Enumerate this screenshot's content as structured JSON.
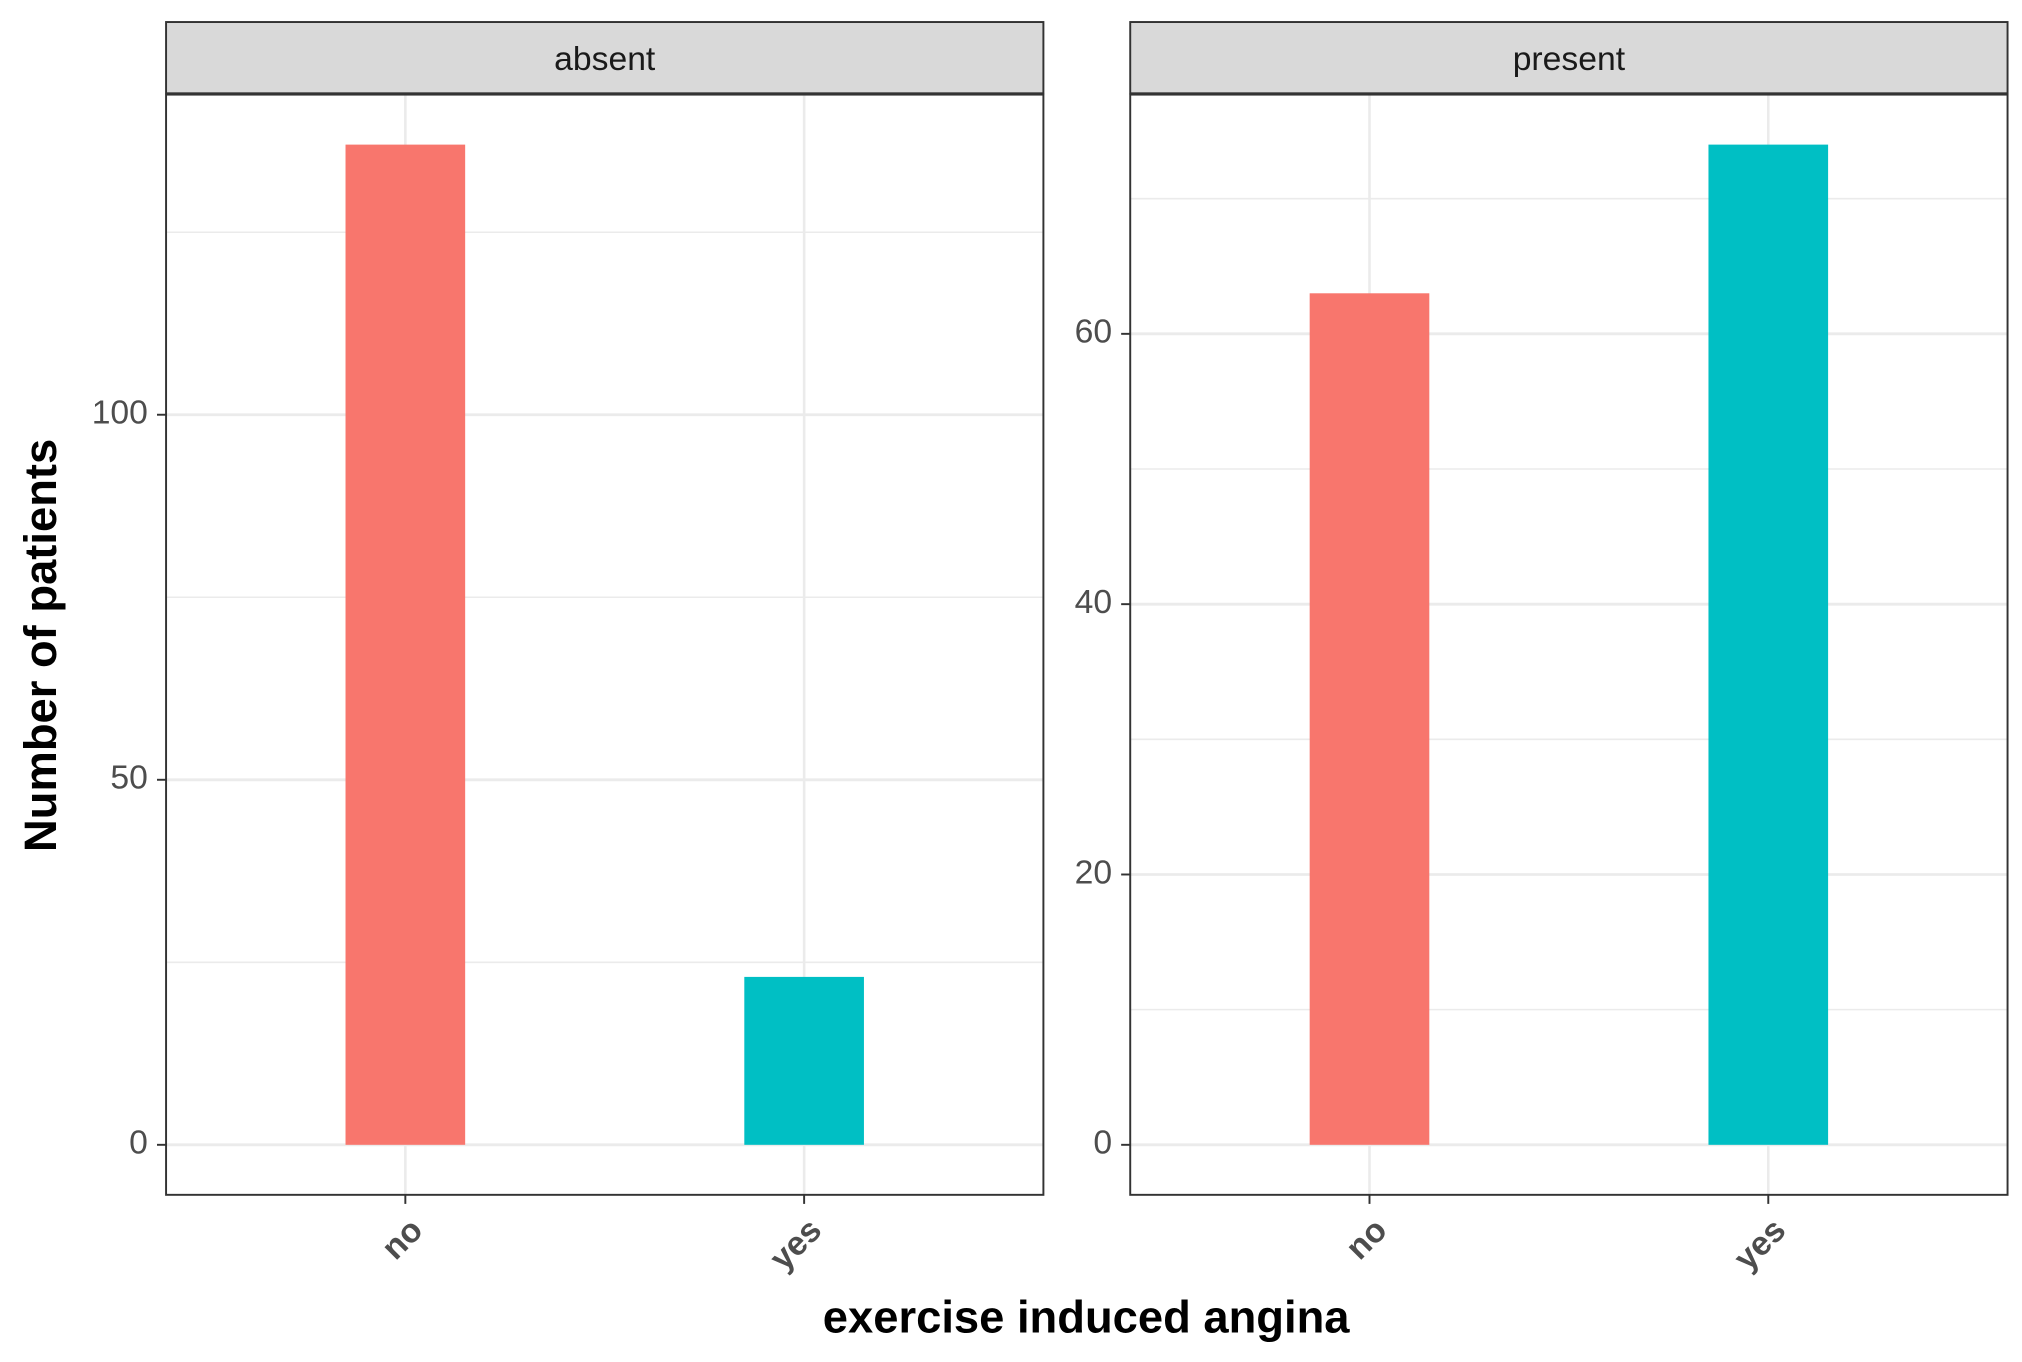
{
  "axis_titles": {
    "x": "exercise induced angina",
    "y": "Number of patients"
  },
  "chart_data": [
    {
      "type": "bar",
      "title": "absent",
      "categories": [
        "no",
        "yes"
      ],
      "values": [
        137,
        23
      ],
      "colors": [
        "#f8766d",
        "#00bfc4"
      ],
      "ylim": [
        -6.85,
        143.85
      ],
      "yticks": [
        0,
        50,
        100
      ],
      "minor_yticks": [
        25,
        75,
        125
      ],
      "grid": true
    },
    {
      "type": "bar",
      "title": "present",
      "categories": [
        "no",
        "yes"
      ],
      "values": [
        63,
        74
      ],
      "colors": [
        "#f8766d",
        "#00bfc4"
      ],
      "ylim": [
        -3.7,
        77.7
      ],
      "yticks": [
        0,
        20,
        40,
        60
      ],
      "minor_yticks": [
        10,
        30,
        50,
        70
      ],
      "grid": true
    }
  ]
}
